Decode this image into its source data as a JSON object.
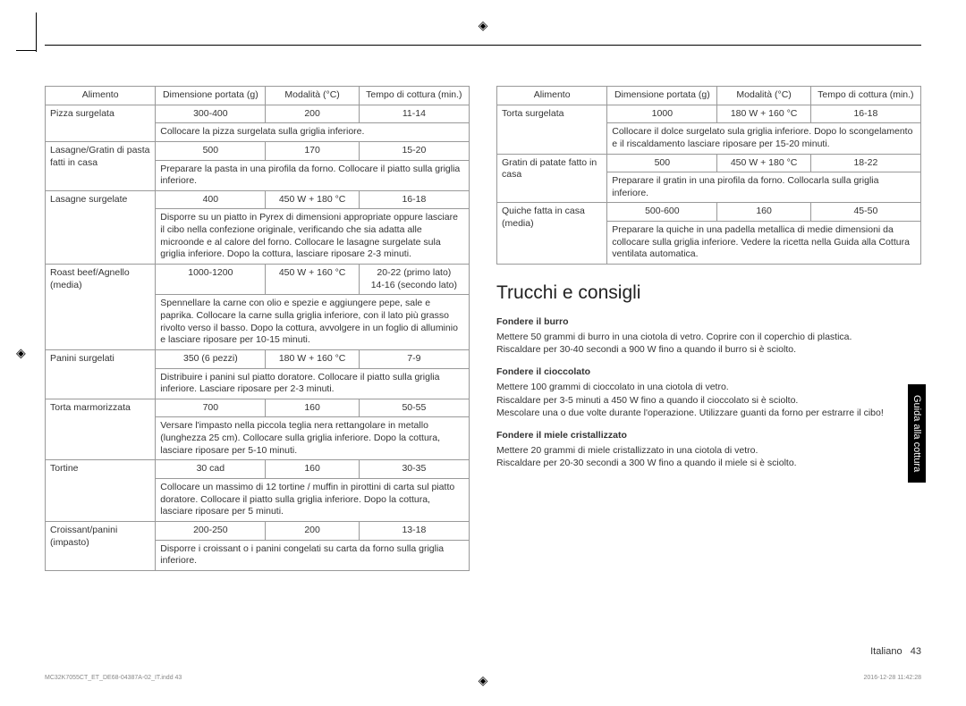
{
  "headers": {
    "food": "Alimento",
    "size": "Dimensione portata (g)",
    "mode": "Modalità (°C)",
    "time": "Tempo di cottura (min.)"
  },
  "table1": [
    {
      "food": "Pizza surgelata",
      "size": "300-400",
      "mode": "200",
      "time": "11-14",
      "instr": "Collocare la pizza surgelata sulla griglia inferiore."
    },
    {
      "food": "Lasagne/Gratin di pasta fatti in casa",
      "size": "500",
      "mode": "170",
      "time": "15-20",
      "instr": "Preparare la pasta in una pirofila da forno. Collocare il piatto sulla griglia inferiore."
    },
    {
      "food": "Lasagne surgelate",
      "size": "400",
      "mode": "450 W + 180 °C",
      "time": "16-18",
      "instr": "Disporre su un piatto in Pyrex di dimensioni appropriate oppure lasciare il cibo nella confezione originale, verificando che sia adatta alle microonde e al calore del forno. Collocare le lasagne surgelate sula griglia inferiore. Dopo la cottura, lasciare riposare 2-3 minuti."
    },
    {
      "food": "Roast beef/Agnello (media)",
      "size": "1000-1200",
      "mode": "450 W + 160 °C",
      "time": "20-22 (primo lato)\n14-16 (secondo lato)",
      "instr": "Spennellare la carne con olio e spezie e aggiungere pepe, sale e paprika. Collocare la carne sulla griglia inferiore, con il lato più grasso rivolto verso il basso. Dopo la cottura, avvolgere in un foglio di alluminio e lasciare riposare per 10-15 minuti."
    },
    {
      "food": "Panini surgelati",
      "size": "350 (6 pezzi)",
      "mode": "180 W + 160 °C",
      "time": "7-9",
      "instr": "Distribuire i panini sul piatto doratore. Collocare il piatto sulla griglia inferiore. Lasciare riposare per 2-3 minuti."
    },
    {
      "food": "Torta marmorizzata",
      "size": "700",
      "mode": "160",
      "time": "50-55",
      "instr": "Versare l'impasto nella piccola teglia nera rettangolare in metallo (lunghezza 25 cm). Collocare sulla griglia inferiore. Dopo la cottura, lasciare riposare per 5-10 minuti."
    },
    {
      "food": "Tortine",
      "size": "30 cad",
      "mode": "160",
      "time": "30-35",
      "instr": "Collocare un massimo di 12 tortine / muffin in pirottini di carta sul piatto doratore. Collocare il piatto sulla griglia inferiore. Dopo la cottura, lasciare riposare per 5 minuti."
    },
    {
      "food": "Croissant/panini (impasto)",
      "size": "200-250",
      "mode": "200",
      "time": "13-18",
      "instr": "Disporre i croissant o i panini congelati su carta da forno sulla griglia inferiore."
    }
  ],
  "table2": [
    {
      "food": "Torta surgelata",
      "size": "1000",
      "mode": "180 W + 160 °C",
      "time": "16-18",
      "instr": "Collocare il dolce surgelato sula griglia inferiore. Dopo lo scongelamento e il riscaldamento lasciare riposare per 15-20 minuti."
    },
    {
      "food": "Gratin di patate fatto in casa",
      "size": "500",
      "mode": "450 W + 180 °C",
      "time": "18-22",
      "instr": "Preparare il gratin in una pirofila da forno. Collocarla sulla griglia inferiore."
    },
    {
      "food": "Quiche fatta in casa (media)",
      "size": "500-600",
      "mode": "160",
      "time": "45-50",
      "instr": "Preparare la quiche in una padella metallica di medie dimensioni da collocare sulla griglia inferiore. Vedere la ricetta nella Guida alla Cottura ventilata automatica."
    }
  ],
  "section_title": "Trucchi e consigli",
  "tips": [
    {
      "title": "Fondere il burro",
      "body": "Mettere 50 grammi di burro in una ciotola di vetro. Coprire con il coperchio di plastica.\nRiscaldare per 30-40 secondi a 900 W fino a quando il burro si è sciolto."
    },
    {
      "title": "Fondere il cioccolato",
      "body": "Mettere 100 grammi di cioccolato in una ciotola di vetro.\nRiscaldare per 3-5 minuti a 450 W fino a quando il cioccolato si è sciolto.\nMescolare una o due volte durante l'operazione. Utilizzare guanti da forno per estrarre il cibo!"
    },
    {
      "title": "Fondere il miele cristallizzato",
      "body": "Mettere 20 grammi di miele cristallizzato in una ciotola di vetro.\nRiscaldare per 20-30 secondi a 300 W fino a quando il miele si è sciolto."
    }
  ],
  "sidetab": "Guida alla cottura",
  "footer_lang": "Italiano",
  "footer_page": "43",
  "tiny_left": "MC32K7055CT_ET_DE68-04387A-02_IT.indd   43",
  "tiny_right": "2016-12-28   11:42:28",
  "colors": {
    "border": "#999999",
    "text": "#333333",
    "tab_bg": "#000000",
    "tab_fg": "#ffffff"
  }
}
